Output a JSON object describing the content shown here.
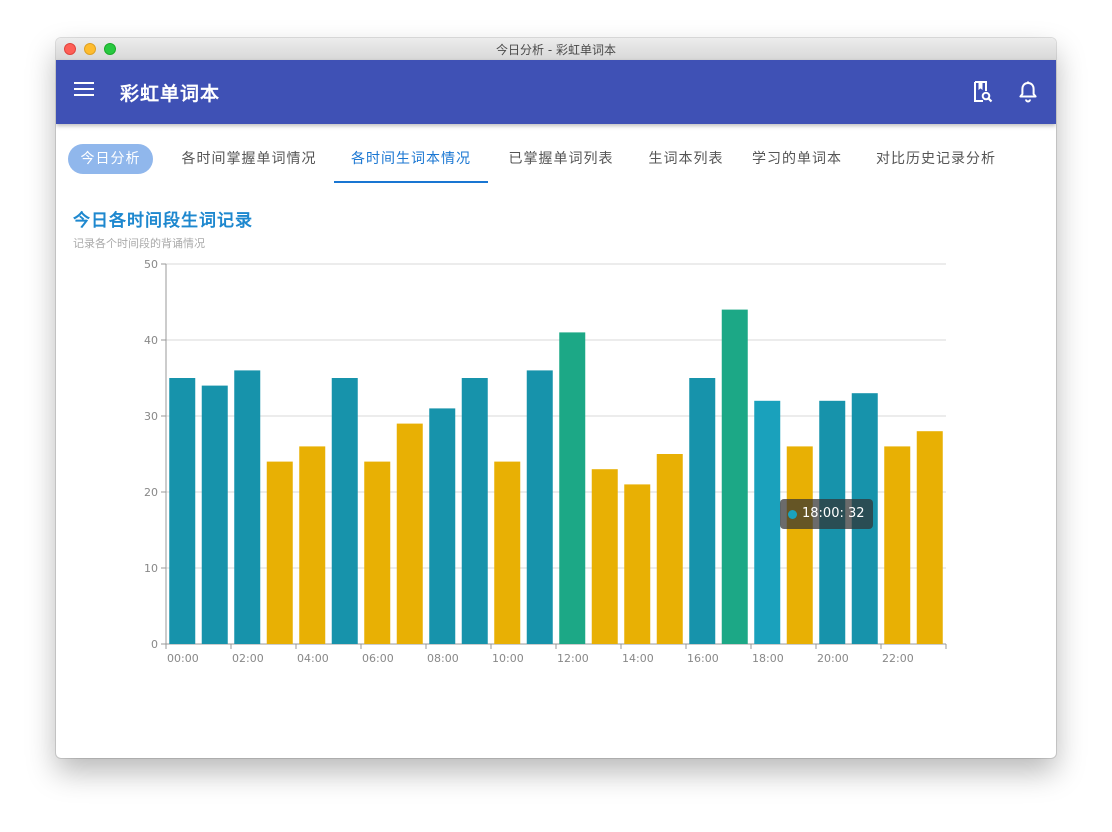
{
  "window": {
    "title": "今日分析 - 彩虹单词本"
  },
  "appbar": {
    "title": "彩虹单词本",
    "icons": [
      "menu-icon",
      "book-search-icon",
      "bell-icon"
    ]
  },
  "tabs": [
    {
      "label": "今日分析",
      "state": "selected-pill"
    },
    {
      "label": "各时间掌握单词情况",
      "state": "normal"
    },
    {
      "label": "各时间生词本情况",
      "state": "active"
    },
    {
      "label": "已掌握单词列表",
      "state": "normal"
    },
    {
      "label": "生词本列表",
      "state": "normal"
    },
    {
      "label": "学习的单词本",
      "state": "normal"
    },
    {
      "label": "对比历史记录分析",
      "state": "normal"
    }
  ],
  "section": {
    "title": "今日各时间段生词记录",
    "subtitle": "记录各个时间段的背诵情况"
  },
  "chart_data": {
    "type": "bar",
    "title": "今日各时间段生词记录",
    "subtitle": "记录各个时间段的背诵情况",
    "categories": [
      "00:00",
      "01:00",
      "02:00",
      "03:00",
      "04:00",
      "05:00",
      "06:00",
      "07:00",
      "08:00",
      "09:00",
      "10:00",
      "11:00",
      "12:00",
      "13:00",
      "14:00",
      "15:00",
      "16:00",
      "17:00",
      "18:00",
      "19:00",
      "20:00",
      "21:00",
      "22:00",
      "23:00"
    ],
    "x_tick_labels": [
      "00:00",
      "02:00",
      "04:00",
      "06:00",
      "08:00",
      "10:00",
      "12:00",
      "14:00",
      "16:00",
      "18:00",
      "20:00",
      "22:00"
    ],
    "values": [
      35,
      34,
      36,
      24,
      26,
      35,
      24,
      29,
      31,
      35,
      24,
      36,
      41,
      23,
      21,
      25,
      35,
      44,
      32,
      26,
      32,
      33,
      26,
      28
    ],
    "bar_colors": [
      "#1793ab",
      "#1793ab",
      "#1793ab",
      "#e8b004",
      "#e8b004",
      "#1793ab",
      "#e8b004",
      "#e8b004",
      "#1793ab",
      "#1793ab",
      "#e8b004",
      "#1793ab",
      "#1ca886",
      "#e8b004",
      "#e8b004",
      "#e8b004",
      "#1793ab",
      "#1ca886",
      "#1aa1bc",
      "#e8b004",
      "#1793ab",
      "#1793ab",
      "#e8b004",
      "#e8b004"
    ],
    "ylim": [
      0,
      50
    ],
    "y_ticks": [
      0,
      10,
      20,
      30,
      40,
      50
    ],
    "grid": true,
    "xlabel": "",
    "ylabel": "",
    "tooltip": {
      "category": "18:00",
      "value": 32,
      "text": "18:00: 32",
      "color": "#1aa1bc"
    }
  }
}
